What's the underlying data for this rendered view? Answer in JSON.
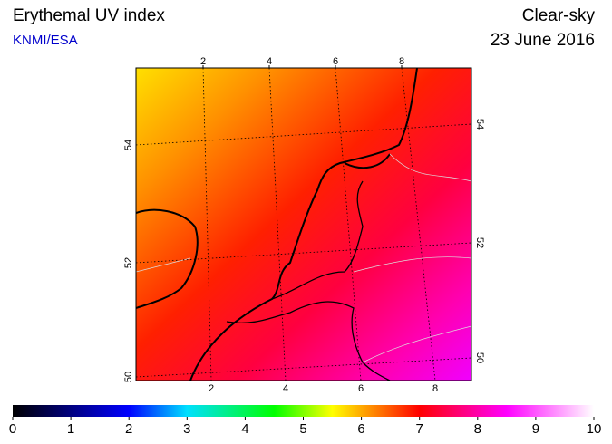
{
  "header": {
    "title": "Erythemal UV index",
    "source": "KNMI/ESA",
    "condition": "Clear-sky",
    "date": "23 June 2016"
  },
  "map": {
    "top_lon_labels": [
      2,
      4,
      6,
      8
    ],
    "bottom_lon_labels": [
      2,
      4,
      6,
      8
    ],
    "left_lat_labels": [
      54,
      52,
      50
    ],
    "right_lat_labels": [
      54,
      52,
      50
    ]
  },
  "colorbar": {
    "labels": [
      0,
      1,
      2,
      3,
      4,
      5,
      6,
      7,
      8,
      9,
      10
    ]
  }
}
